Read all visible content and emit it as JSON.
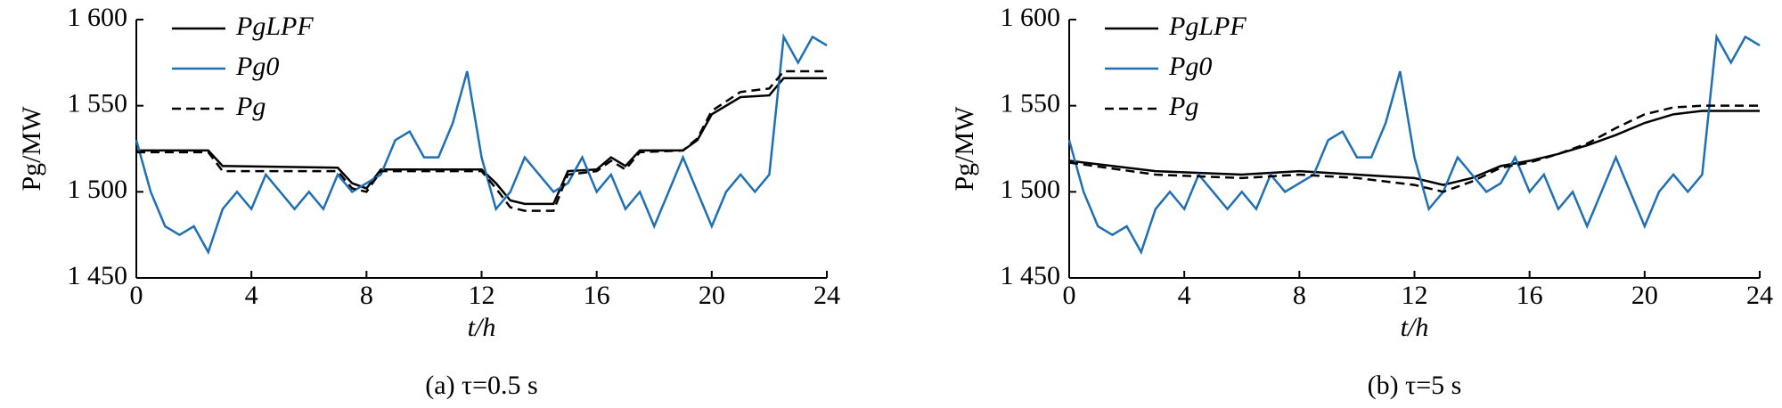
{
  "chart_data": [
    {
      "type": "line",
      "subtitle": "(a)  τ=0.5 s",
      "xlabel": "t/h",
      "ylabel": "Pg/MW",
      "xlim": [
        0,
        24
      ],
      "xticks": [
        0,
        4,
        8,
        12,
        16,
        20,
        24
      ],
      "ylim": [
        1450,
        1600
      ],
      "yticks": [
        {
          "value": 1450,
          "label": "1 450"
        },
        {
          "value": 1500,
          "label": "1 500"
        },
        {
          "value": 1550,
          "label": "1 550"
        },
        {
          "value": 1600,
          "label": "1 600"
        }
      ],
      "legend": "upper left",
      "series": [
        {
          "name": "PgLPF",
          "color": "#000000",
          "dash": false,
          "x": [
            0,
            2.5,
            3,
            7,
            7.5,
            8,
            8.5,
            12,
            12.5,
            13,
            13.5,
            14.5,
            15,
            16,
            16.5,
            17,
            17.5,
            19,
            19.5,
            20,
            21,
            22,
            22.5,
            24
          ],
          "values": [
            1524,
            1524,
            1515,
            1514,
            1505,
            1502,
            1513,
            1513,
            1505,
            1495,
            1493,
            1493,
            1512,
            1513,
            1520,
            1515,
            1524,
            1524,
            1530,
            1545,
            1555,
            1556,
            1566,
            1566
          ]
        },
        {
          "name": "Pg0",
          "color": "#1f6fb5",
          "dash": false,
          "x": [
            0,
            0.5,
            1,
            1.5,
            2,
            2.5,
            3,
            3.5,
            4,
            4.5,
            5,
            5.5,
            6,
            6.5,
            7,
            7.5,
            8,
            8.5,
            9,
            9.5,
            10,
            10.5,
            11,
            11.5,
            12,
            12.5,
            13,
            13.5,
            14,
            14.5,
            15,
            15.5,
            16,
            16.5,
            17,
            17.5,
            18,
            18.5,
            19,
            19.5,
            20,
            20.5,
            21,
            21.5,
            22,
            22.5,
            23,
            23.5,
            24
          ],
          "values": [
            1530,
            1500,
            1480,
            1475,
            1480,
            1465,
            1490,
            1500,
            1490,
            1510,
            1500,
            1490,
            1500,
            1490,
            1510,
            1500,
            1505,
            1510,
            1530,
            1535,
            1520,
            1520,
            1540,
            1570,
            1520,
            1490,
            1500,
            1520,
            1510,
            1500,
            1505,
            1520,
            1500,
            1510,
            1490,
            1500,
            1480,
            1500,
            1520,
            1500,
            1480,
            1500,
            1510,
            1500,
            1510,
            1590,
            1575,
            1590,
            1585
          ]
        },
        {
          "name": "Pg",
          "color": "#000000",
          "dash": true,
          "x": [
            0,
            2.5,
            3,
            7,
            7.5,
            8,
            8.5,
            12,
            12.5,
            13,
            13.5,
            14.5,
            15,
            16,
            16.5,
            17,
            17.5,
            19,
            19.5,
            20,
            21,
            22,
            22.5,
            24
          ],
          "values": [
            1523,
            1523,
            1512,
            1512,
            1502,
            1500,
            1512,
            1512,
            1502,
            1491,
            1489,
            1489,
            1510,
            1512,
            1518,
            1513,
            1523,
            1524,
            1531,
            1547,
            1558,
            1560,
            1570,
            1570
          ]
        }
      ]
    },
    {
      "type": "line",
      "subtitle": "(b)  τ=5 s",
      "xlabel": "t/h",
      "ylabel": "Pg/MW",
      "xlim": [
        0,
        24
      ],
      "xticks": [
        0,
        4,
        8,
        12,
        16,
        20,
        24
      ],
      "ylim": [
        1450,
        1600
      ],
      "yticks": [
        {
          "value": 1450,
          "label": "1 450"
        },
        {
          "value": 1500,
          "label": "1 500"
        },
        {
          "value": 1550,
          "label": "1 550"
        },
        {
          "value": 1600,
          "label": "1 600"
        }
      ],
      "legend": "upper left",
      "series": [
        {
          "name": "PgLPF",
          "color": "#000000",
          "dash": false,
          "x": [
            0,
            3,
            6,
            8,
            10,
            12,
            13,
            14,
            15,
            16,
            17,
            18,
            19,
            20,
            21,
            22,
            24
          ],
          "values": [
            1518,
            1512,
            1510,
            1512,
            1510,
            1508,
            1504,
            1508,
            1515,
            1518,
            1522,
            1527,
            1533,
            1540,
            1545,
            1547,
            1547
          ]
        },
        {
          "name": "Pg0",
          "color": "#1f6fb5",
          "dash": false,
          "x": [
            0,
            0.5,
            1,
            1.5,
            2,
            2.5,
            3,
            3.5,
            4,
            4.5,
            5,
            5.5,
            6,
            6.5,
            7,
            7.5,
            8,
            8.5,
            9,
            9.5,
            10,
            10.5,
            11,
            11.5,
            12,
            12.5,
            13,
            13.5,
            14,
            14.5,
            15,
            15.5,
            16,
            16.5,
            17,
            17.5,
            18,
            18.5,
            19,
            19.5,
            20,
            20.5,
            21,
            21.5,
            22,
            22.5,
            23,
            23.5,
            24
          ],
          "values": [
            1530,
            1500,
            1480,
            1475,
            1480,
            1465,
            1490,
            1500,
            1490,
            1510,
            1500,
            1490,
            1500,
            1490,
            1510,
            1500,
            1505,
            1510,
            1530,
            1535,
            1520,
            1520,
            1540,
            1570,
            1520,
            1490,
            1500,
            1520,
            1510,
            1500,
            1505,
            1520,
            1500,
            1510,
            1490,
            1500,
            1480,
            1500,
            1520,
            1500,
            1480,
            1500,
            1510,
            1500,
            1510,
            1590,
            1575,
            1590,
            1585
          ]
        },
        {
          "name": "Pg",
          "color": "#000000",
          "dash": true,
          "x": [
            0,
            3,
            6,
            8,
            10,
            12,
            13,
            14,
            15,
            16,
            17,
            18,
            19,
            20,
            21,
            22,
            24
          ],
          "values": [
            1517,
            1510,
            1508,
            1510,
            1508,
            1504,
            1500,
            1506,
            1514,
            1517,
            1522,
            1528,
            1537,
            1545,
            1549,
            1550,
            1550
          ]
        }
      ]
    }
  ]
}
